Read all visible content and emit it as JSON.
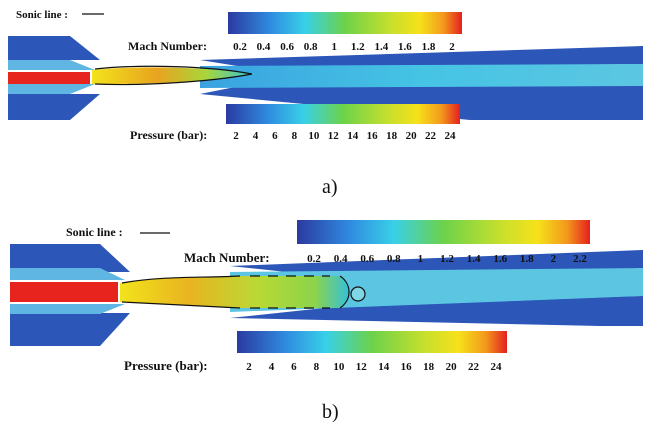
{
  "panel_a": {
    "sonic_line_label": "Sonic line :",
    "mach_label": "Mach Number:",
    "mach_ticks": [
      "0.2",
      "0.4",
      "0.6",
      "0.8",
      "1",
      "1.2",
      "1.4",
      "1.6",
      "1.8",
      "2"
    ],
    "pressure_label": "Pressure (bar):",
    "pressure_ticks": [
      "2",
      "4",
      "6",
      "8",
      "10",
      "12",
      "14",
      "16",
      "18",
      "20",
      "22",
      "24"
    ],
    "caption": "a)"
  },
  "panel_b": {
    "sonic_line_label": "Sonic line :",
    "mach_label": "Mach Number:",
    "mach_ticks": [
      "0.2",
      "0.4",
      "0.6",
      "0.8",
      "1",
      "1.2",
      "1.4",
      "1.6",
      "1.8",
      "2",
      "2.2"
    ],
    "pressure_label": "Pressure (bar):",
    "pressure_ticks": [
      "2",
      "4",
      "6",
      "8",
      "10",
      "12",
      "14",
      "16",
      "18",
      "20",
      "22",
      "24"
    ],
    "caption": "b)"
  }
}
